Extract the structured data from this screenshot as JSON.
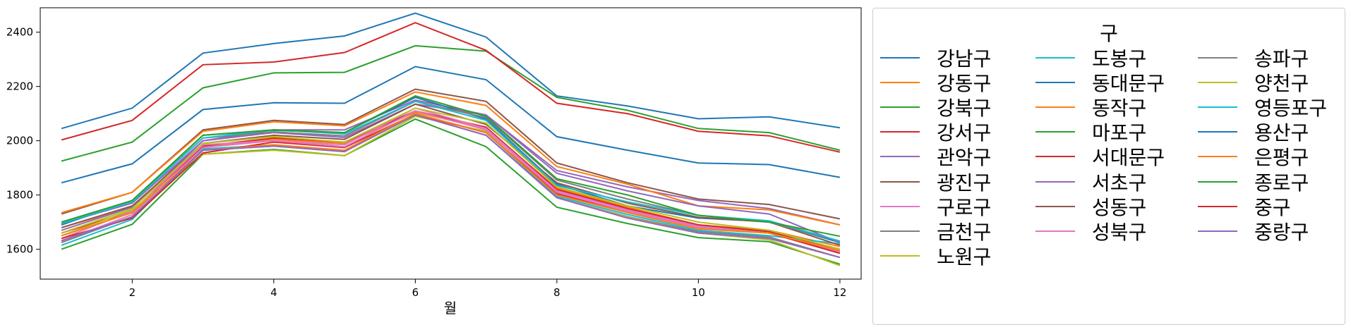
{
  "chart_data": {
    "type": "line",
    "xlabel": "월",
    "ylabel": "",
    "xlim": [
      0.7,
      12.3
    ],
    "ylim": [
      1490,
      2490
    ],
    "x_ticks": [
      2,
      4,
      6,
      8,
      10,
      12
    ],
    "y_ticks": [
      1600,
      1800,
      2000,
      2200,
      2400
    ],
    "x": [
      1,
      2,
      3,
      4,
      5,
      6,
      7,
      8,
      9,
      10,
      11,
      12
    ],
    "legend_title": "구",
    "legend_position": "right outside",
    "grid": false,
    "series": [
      {
        "name": "강남구",
        "color": "#1f77b4",
        "values": [
          2045,
          2120,
          2323,
          2358,
          2386,
          2470,
          2382,
          2165,
          2128,
          2081,
          2088,
          2048
        ]
      },
      {
        "name": "강동구",
        "color": "#ff7f0e",
        "values": [
          1680,
          1755,
          1975,
          2005,
          1990,
          2105,
          2045,
          1825,
          1755,
          1690,
          1670,
          1610
        ]
      },
      {
        "name": "강북구",
        "color": "#2ca02c",
        "values": [
          1600,
          1692,
          1950,
          1968,
          1945,
          2080,
          1978,
          1755,
          1695,
          1643,
          1628,
          1545
        ]
      },
      {
        "name": "강서구",
        "color": "#d62728",
        "values": [
          1660,
          1740,
          1980,
          2010,
          1995,
          2110,
          2050,
          1820,
          1750,
          1690,
          1665,
          1600
        ]
      },
      {
        "name": "관악구",
        "color": "#9467bd",
        "values": [
          1695,
          1770,
          2000,
          2040,
          2040,
          2150,
          2095,
          1890,
          1830,
          1780,
          1750,
          1690
        ]
      },
      {
        "name": "광진구",
        "color": "#8c564b",
        "values": [
          1730,
          1810,
          2040,
          2075,
          2060,
          2190,
          2145,
          1918,
          1845,
          1785,
          1765,
          1712
        ]
      },
      {
        "name": "구로구",
        "color": "#e377c2",
        "values": [
          1640,
          1740,
          1985,
          2000,
          1985,
          2120,
          2045,
          1815,
          1745,
          1685,
          1660,
          1590
        ]
      },
      {
        "name": "금천구",
        "color": "#7f7f7f",
        "values": [
          1625,
          1720,
          1965,
          1980,
          1960,
          2095,
          2020,
          1790,
          1720,
          1665,
          1645,
          1570
        ]
      },
      {
        "name": "노원구",
        "color": "#bcbd22",
        "values": [
          1650,
          1745,
          1950,
          1965,
          1945,
          2090,
          2035,
          1790,
          1718,
          1660,
          1635,
          1540
        ]
      },
      {
        "name": "도봉구",
        "color": "#17becf",
        "values": [
          1615,
          1710,
          1970,
          1985,
          1960,
          2100,
          2030,
          1795,
          1728,
          1670,
          1650,
          1620
        ]
      },
      {
        "name": "동대문구",
        "color": "#1f77b4",
        "values": [
          1690,
          1780,
          2020,
          2038,
          2030,
          2160,
          2080,
          1840,
          1760,
          1715,
          1702,
          1625
        ]
      },
      {
        "name": "동작구",
        "color": "#ff7f0e",
        "values": [
          1735,
          1810,
          2035,
          2070,
          2055,
          2180,
          2130,
          1905,
          1840,
          1760,
          1745,
          1690
        ]
      },
      {
        "name": "마포구",
        "color": "#2ca02c",
        "values": [
          1925,
          1995,
          2195,
          2250,
          2252,
          2350,
          2330,
          2160,
          2112,
          2045,
          2030,
          1965
        ]
      },
      {
        "name": "서대문구",
        "color": "#d62728",
        "values": [
          1640,
          1715,
          1955,
          1995,
          1975,
          2098,
          2030,
          1805,
          1740,
          1680,
          1660,
          1585
        ]
      },
      {
        "name": "서초구",
        "color": "#9467bd",
        "values": [
          1670,
          1755,
          2000,
          2030,
          2012,
          2135,
          2095,
          1880,
          1815,
          1760,
          1730,
          1625
        ]
      },
      {
        "name": "성동구",
        "color": "#8c564b",
        "values": [
          1680,
          1760,
          1990,
          2020,
          2005,
          2135,
          2060,
          1845,
          1770,
          1718,
          1700,
          1615
        ]
      },
      {
        "name": "성북구",
        "color": "#e377c2",
        "values": [
          1630,
          1728,
          1975,
          2000,
          1978,
          2110,
          2040,
          1810,
          1740,
          1680,
          1660,
          1595
        ]
      },
      {
        "name": "송파구",
        "color": "#7f7f7f",
        "values": [
          1700,
          1778,
          2010,
          2032,
          2018,
          2145,
          2085,
          1855,
          1785,
          1725,
          1700,
          1630
        ]
      },
      {
        "name": "양천구",
        "color": "#bcbd22",
        "values": [
          1660,
          1750,
          1990,
          2015,
          1995,
          2120,
          2065,
          1830,
          1760,
          1700,
          1670,
          1600
        ]
      },
      {
        "name": "영등포구",
        "color": "#17becf",
        "values": [
          1695,
          1775,
          2010,
          2040,
          2025,
          2145,
          2075,
          1835,
          1775,
          1725,
          1705,
          1630
        ]
      },
      {
        "name": "용산구",
        "color": "#1f77b4",
        "values": [
          1845,
          1915,
          2115,
          2140,
          2138,
          2273,
          2225,
          2015,
          1965,
          1918,
          1912,
          1865
        ]
      },
      {
        "name": "은평구",
        "color": "#ff7f0e",
        "values": [
          1650,
          1735,
          1965,
          1985,
          1965,
          2100,
          2030,
          1800,
          1735,
          1675,
          1660,
          1595
        ]
      },
      {
        "name": "종로구",
        "color": "#2ca02c",
        "values": [
          1700,
          1780,
          2020,
          2040,
          2030,
          2165,
          2090,
          1860,
          1800,
          1725,
          1700,
          1648
        ]
      },
      {
        "name": "중구",
        "color": "#d62728",
        "values": [
          2003,
          2075,
          2280,
          2290,
          2325,
          2435,
          2333,
          2138,
          2100,
          2035,
          2018,
          1958
        ]
      },
      {
        "name": "중랑구",
        "color": "#9467bd",
        "values": [
          1632,
          1720,
          1965,
          1980,
          1960,
          2095,
          2020,
          1790,
          1715,
          1660,
          1640,
          1570
        ]
      }
    ]
  }
}
